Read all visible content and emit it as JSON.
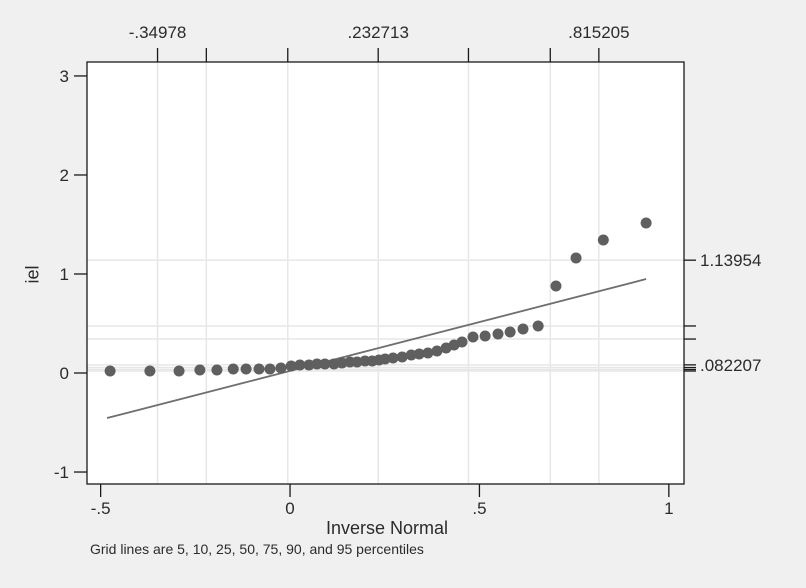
{
  "figure": {
    "background": "#f0f0f0",
    "plot_background": "#ffffff"
  },
  "chart_data": {
    "type": "scatter",
    "title": "",
    "xlabel": "Inverse Normal",
    "ylabel": "iel",
    "caption": "Grid lines are 5, 10, 25, 50, 75, 90, and 95 percentiles",
    "xlim": [
      -0.536,
      1.04
    ],
    "ylim": [
      -1.121,
      3.141
    ],
    "grid": true,
    "colors": {
      "point": "#5f5f5f",
      "reference_line": "#6f6f6f",
      "gridline": "#e7e7e7",
      "border": "#1a1a1a",
      "tick": "#1a1a1a",
      "text": "#2b2b2b"
    },
    "bottom_axis": {
      "title": "Inverse Normal",
      "ticks": [
        {
          "value": -0.5,
          "label": "-.5"
        },
        {
          "value": 0,
          "label": "0"
        },
        {
          "value": 0.5,
          "label": ".5"
        },
        {
          "value": 1,
          "label": "1"
        }
      ]
    },
    "left_axis": {
      "title": "iel",
      "ticks": [
        {
          "value": -1,
          "label": "-1"
        },
        {
          "value": 0,
          "label": "0"
        },
        {
          "value": 1,
          "label": "1"
        },
        {
          "value": 2,
          "label": "2"
        },
        {
          "value": 3,
          "label": "3"
        }
      ]
    },
    "top_axis": {
      "note": "x positions of 5,10,25,50,75,90,95 percentiles",
      "ticks": [
        {
          "value": -0.34978,
          "label": "-.34978"
        },
        {
          "value": -0.221,
          "label": ""
        },
        {
          "value": -0.006,
          "label": ""
        },
        {
          "value": 0.232713,
          "label": ".232713"
        },
        {
          "value": 0.471,
          "label": ""
        },
        {
          "value": 0.687,
          "label": ""
        },
        {
          "value": 0.815205,
          "label": ".815205"
        }
      ]
    },
    "right_axis": {
      "note": "y values of 5,10,25,50,75,90,95 percentiles",
      "ticks": [
        {
          "value": 0.02,
          "label": ""
        },
        {
          "value": 0.035,
          "label": ""
        },
        {
          "value": 0.055,
          "label": ""
        },
        {
          "value": 0.082207,
          "label": ".082207"
        },
        {
          "value": 0.343,
          "label": ""
        },
        {
          "value": 0.475,
          "label": ""
        },
        {
          "value": 1.13954,
          "label": "1.13954"
        }
      ]
    },
    "reference_line": {
      "x1": -0.483,
      "y1": -0.455,
      "x2": 0.94,
      "y2": 0.949
    },
    "points": [
      [
        -0.475,
        0.02
      ],
      [
        -0.37,
        0.02
      ],
      [
        -0.293,
        0.02
      ],
      [
        -0.238,
        0.03
      ],
      [
        -0.193,
        0.03
      ],
      [
        -0.15,
        0.04
      ],
      [
        -0.116,
        0.04
      ],
      [
        -0.082,
        0.04
      ],
      [
        -0.053,
        0.04
      ],
      [
        -0.024,
        0.051
      ],
      [
        0.003,
        0.071
      ],
      [
        0.026,
        0.081
      ],
      [
        0.05,
        0.081
      ],
      [
        0.071,
        0.091
      ],
      [
        0.092,
        0.091
      ],
      [
        0.116,
        0.091
      ],
      [
        0.137,
        0.101
      ],
      [
        0.158,
        0.111
      ],
      [
        0.177,
        0.111
      ],
      [
        0.198,
        0.121
      ],
      [
        0.217,
        0.121
      ],
      [
        0.235,
        0.131
      ],
      [
        0.251,
        0.141
      ],
      [
        0.272,
        0.152
      ],
      [
        0.296,
        0.162
      ],
      [
        0.32,
        0.182
      ],
      [
        0.341,
        0.192
      ],
      [
        0.364,
        0.202
      ],
      [
        0.388,
        0.222
      ],
      [
        0.412,
        0.253
      ],
      [
        0.433,
        0.283
      ],
      [
        0.454,
        0.313
      ],
      [
        0.483,
        0.364
      ],
      [
        0.515,
        0.374
      ],
      [
        0.549,
        0.394
      ],
      [
        0.581,
        0.414
      ],
      [
        0.615,
        0.444
      ],
      [
        0.655,
        0.475
      ],
      [
        0.702,
        0.879
      ],
      [
        0.755,
        1.162
      ],
      [
        0.827,
        1.343
      ],
      [
        0.94,
        1.515
      ]
    ]
  }
}
